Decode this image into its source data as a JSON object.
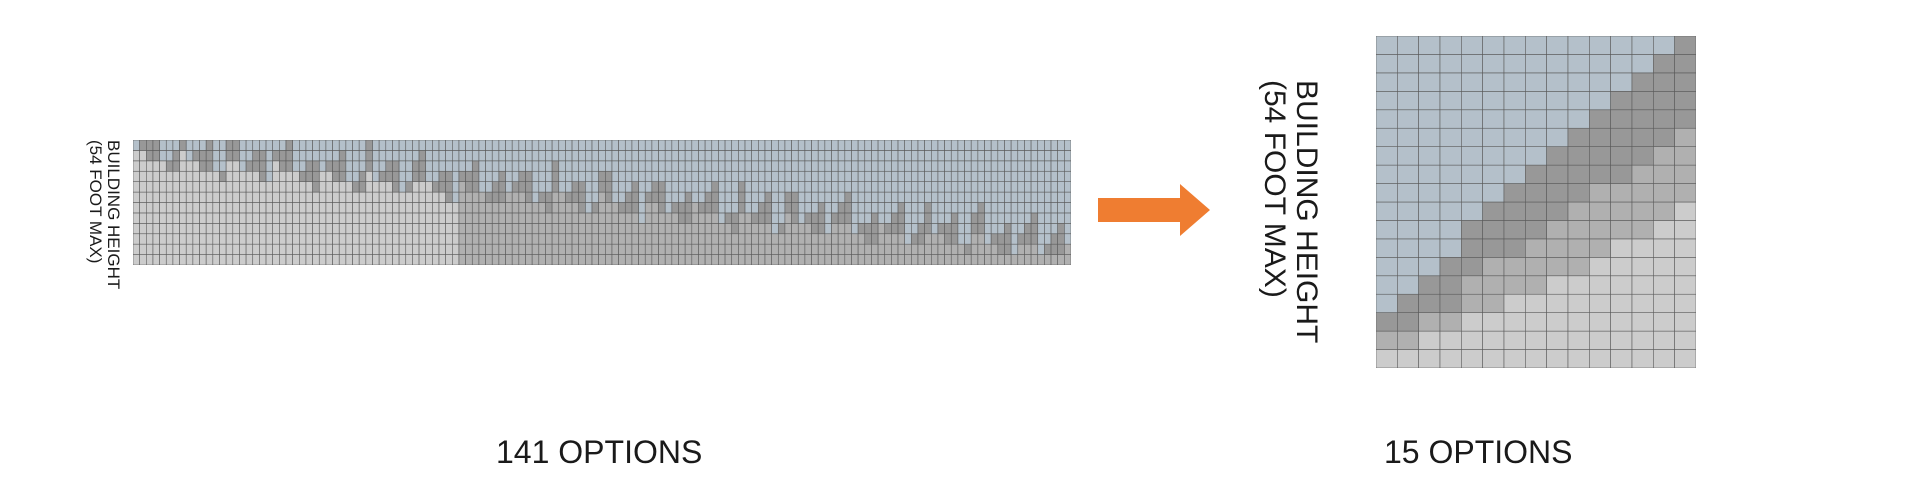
{
  "left_panel": {
    "axis_label_line1": "BUILDING HEIGHT",
    "axis_label_line2": "(54 FOOT MAX)",
    "caption": "141 OPTIONS",
    "option_count": 141
  },
  "right_panel": {
    "axis_label_line1": "BUILDING HEIGHT",
    "axis_label_line2": "(54 FOOT MAX)",
    "caption": "15 OPTIONS",
    "option_count": 15
  },
  "colors": {
    "sky": "#b4c0ca",
    "light_floor": "#cccccc",
    "mid_floor": "#b0b0b0",
    "dark_floor": "#989898",
    "grid_line": "#5a5a5a",
    "arrow": "#ef7d31"
  },
  "arrow": {
    "icon": "right-arrow-icon"
  }
}
